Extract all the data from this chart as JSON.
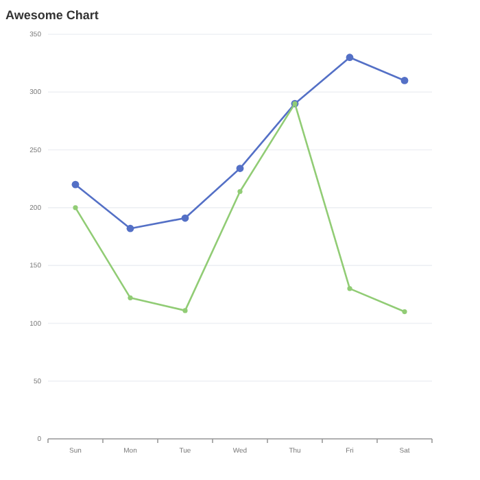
{
  "chart_data": {
    "type": "line",
    "title": "Awesome Chart",
    "categories": [
      "Sun",
      "Mon",
      "Tue",
      "Wed",
      "Thu",
      "Fri",
      "Sat"
    ],
    "series": [
      {
        "color": "#5470c6",
        "values": [
          220,
          182,
          191,
          234,
          290,
          330,
          310
        ]
      },
      {
        "color": "#91cc75",
        "values": [
          200,
          122,
          111,
          214,
          290,
          130,
          110
        ]
      }
    ],
    "ylim": [
      0,
      350
    ],
    "yticks": [
      0,
      50,
      100,
      150,
      200,
      250,
      300,
      350
    ],
    "grid": "y",
    "marker": "circle"
  }
}
